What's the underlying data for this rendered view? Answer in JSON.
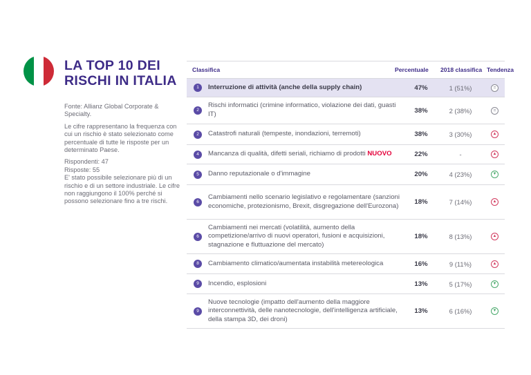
{
  "flag": {
    "colors": [
      "#009246",
      "#ffffff",
      "#ce2b37"
    ]
  },
  "title": {
    "line1": "LA TOP 10 DEI",
    "line2": "RISCHI IN ITALIA"
  },
  "info": {
    "source": "Fonte: Allianz Global Corporate & Specialty.",
    "note": "Le cifre rappresentano la frequenza con cui un rischio è stato selezionato come percentuale di tutte le risposte per un determinato Paese.",
    "respondents": "Rispondenti: 47",
    "responses": "Risposte: 55",
    "multi": "E' stato possibile selezionare più di un rischio e di un settore industriale. Le cifre non raggiungono il 100% perché si possono selezionare fino a tre rischi."
  },
  "table": {
    "headers": {
      "rank": "Classifica",
      "pct": "Percentuale",
      "prev": "2018 classifica",
      "trend": "Tendenza"
    },
    "rows": [
      {
        "rank": "1",
        "desc": "Interruzione di attività (anche della supply chain)",
        "pct": "47%",
        "prev": "1 (51%)",
        "trend": "eq",
        "trend_icon": "="
      },
      {
        "rank": "2",
        "desc": "Rischi informatici (crimine informatico, violazione dei dati, guasti IT)",
        "pct": "38%",
        "prev": "2 (38%)",
        "trend": "eq",
        "trend_icon": "="
      },
      {
        "rank": "2",
        "desc": "Catastrofi naturali (tempeste, inondazioni, terremoti)",
        "pct": "38%",
        "prev": "3 (30%)",
        "trend": "up",
        "trend_icon": "▲"
      },
      {
        "rank": "4",
        "desc": "Mancanza di qualità, difetti seriali, richiamo di prodotti",
        "tag": "NUOVO",
        "pct": "22%",
        "prev": "-",
        "trend": "up",
        "trend_icon": "▲"
      },
      {
        "rank": "5",
        "desc": "Danno reputazionale o d'immagine",
        "pct": "20%",
        "prev": "4 (23%)",
        "trend": "down",
        "trend_icon": "▼"
      },
      {
        "rank": "6",
        "desc": "Cambiamenti nello scenario legislativo e regolamentare (sanzioni economiche, protezionismo, Brexit, disgregazione dell'Eurozona)",
        "pct": "18%",
        "prev": "7 (14%)",
        "trend": "up",
        "trend_icon": "▲"
      },
      {
        "rank": "6",
        "desc": "Cambiamenti nei mercati (volatilità, aumento della competizione/arrivo di nuovi operatori, fusioni e acquisizioni, stagnazione e fluttuazione del mercato)",
        "pct": "18%",
        "prev": "8 (13%)",
        "trend": "up",
        "trend_icon": "▲"
      },
      {
        "rank": "8",
        "desc": "Cambiamento climatico/aumentata instabilità metereologica",
        "pct": "16%",
        "prev": "9 (11%)",
        "trend": "up",
        "trend_icon": "▲"
      },
      {
        "rank": "9",
        "desc": "Incendio, esplosioni",
        "pct": "13%",
        "prev": "5 (17%)",
        "trend": "down",
        "trend_icon": "▼"
      },
      {
        "rank": "9",
        "desc": "Nuove tecnologie (impatto dell'aumento della maggiore interconnettività, delle nanotecnologie, dell'intelligenza artificiale, della stampa 3D, dei droni)",
        "pct": "13%",
        "prev": "6 (16%)",
        "trend": "down",
        "trend_icon": "▼"
      }
    ]
  }
}
